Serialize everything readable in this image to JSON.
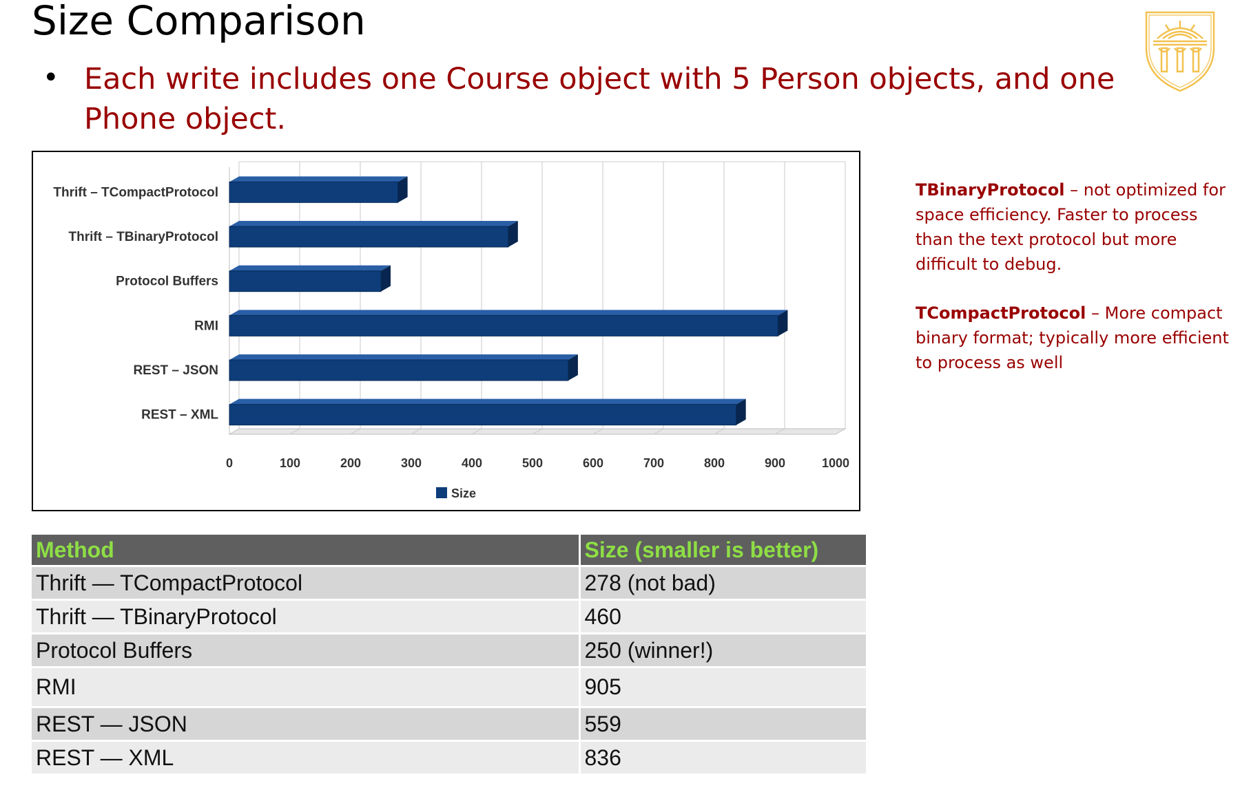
{
  "slide": {
    "title": "Size Comparison",
    "bullet_marker": "•",
    "bullet": "Each write includes one Course object with 5 Person objects, and one Phone object."
  },
  "notes": [
    {
      "term": "TBinaryProtocol",
      "text": " – not optimized for space efficiency. Faster to process than the text protocol but more difficult to debug."
    },
    {
      "term": "TCompactProtocol",
      "text": " – More compact binary format; typically more efficient to process as well"
    }
  ],
  "table": {
    "headers": [
      "Method",
      "Size (smaller is better)"
    ],
    "rows": [
      [
        "Thrift — TCompactProtocol",
        "278 (not bad)"
      ],
      [
        "Thrift — TBinaryProtocol",
        "460"
      ],
      [
        "Protocol Buffers",
        "250 (winner!)"
      ],
      [
        "RMI",
        "905"
      ],
      [
        "REST — JSON",
        "559"
      ],
      [
        "REST — XML",
        "836"
      ]
    ]
  },
  "colors": {
    "bar": "#0e3d7a",
    "bar_top": "#2a5fa6",
    "bar_side": "#08264f",
    "accent_text": "#990000",
    "header_text": "#8ede45",
    "seal": "#f2c14e"
  },
  "chart_data": {
    "type": "bar",
    "orientation": "horizontal",
    "categories": [
      "Thrift – TCompactProtocol",
      "Thrift – TBinaryProtocol",
      "Protocol Buffers",
      "RMI",
      "REST – JSON",
      "REST – XML"
    ],
    "series": [
      {
        "name": "Size",
        "values": [
          278,
          460,
          250,
          905,
          559,
          836
        ]
      }
    ],
    "xlim": [
      0,
      1000
    ],
    "xticks": [
      0,
      100,
      200,
      300,
      400,
      500,
      600,
      700,
      800,
      900,
      1000
    ],
    "grid": true,
    "legend": "bottom",
    "style": "3d"
  }
}
